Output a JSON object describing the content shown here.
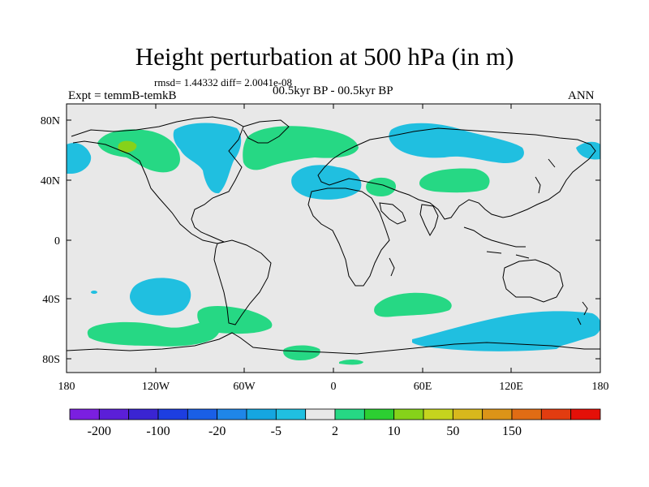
{
  "title": "Height perturbation at 500 hPa (in m)",
  "stats": "rmsd= 1.44332  diff= 2.0041e-08",
  "left_label": "Expt = temmB-temkB",
  "center_label": "00.5kyr BP - 00.5kyr BP",
  "right_label": "ANN",
  "axes": {
    "y_ticks": [
      "80N",
      "40N",
      "0",
      "40S",
      "80S"
    ],
    "x_ticks": [
      "180",
      "120W",
      "60W",
      "0",
      "60E",
      "120E",
      "180"
    ]
  },
  "colorbar": {
    "colors": [
      "#7b1fe0",
      "#5b1fd8",
      "#3a24d2",
      "#1d3ee0",
      "#1a5fe6",
      "#1f86e8",
      "#15a6e0",
      "#20bfe0",
      "#e8e8e8",
      "#26d884",
      "#2ccf32",
      "#86d21a",
      "#c5d41e",
      "#d8b81c",
      "#dc9418",
      "#e06c14",
      "#e23c10",
      "#e41008"
    ],
    "labels": [
      "-200",
      "-100",
      "-20",
      "-5",
      "2",
      "10",
      "50",
      "150"
    ]
  },
  "map_colors": {
    "background": "#e8e8e8",
    "negative": "#20bfe0",
    "positive": "#26d884",
    "strong_positive": "#86d21a",
    "coast": "#000000"
  }
}
